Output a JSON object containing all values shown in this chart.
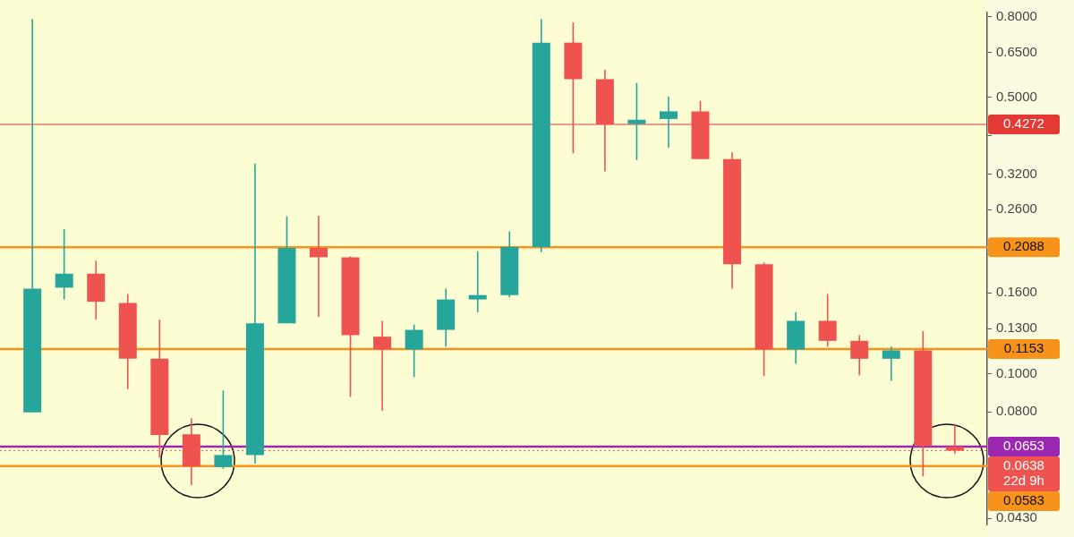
{
  "chart_data": {
    "type": "candlestick",
    "tick_labels": "y",
    "log": true,
    "categories": [
      null,
      null,
      null,
      null,
      null,
      null,
      null,
      null,
      null,
      null,
      null,
      null,
      null,
      null,
      null,
      null,
      null,
      null,
      null,
      null,
      null,
      null,
      null,
      null,
      null,
      null,
      null,
      null,
      null,
      null
    ],
    "ohlc": [
      [
        0.0798,
        0.79,
        0.0798,
        0.164
      ],
      [
        0.165,
        0.232,
        0.154,
        0.179
      ],
      [
        0.179,
        0.193,
        0.137,
        0.152
      ],
      [
        0.151,
        0.159,
        0.0913,
        0.109
      ],
      [
        0.109,
        0.137,
        0.0613,
        0.0699
      ],
      [
        0.0702,
        0.0771,
        0.0522,
        0.0582
      ],
      [
        0.058,
        0.0906,
        0.0574,
        0.0622
      ],
      [
        0.0622,
        0.34,
        0.0592,
        0.134
      ],
      [
        0.134,
        0.25,
        0.134,
        0.208
      ],
      [
        0.208,
        0.251,
        0.139,
        0.197
      ],
      [
        0.197,
        0.198,
        0.0873,
        0.125
      ],
      [
        0.124,
        0.136,
        0.0805,
        0.115
      ],
      [
        0.115,
        0.133,
        0.098,
        0.129
      ],
      [
        0.129,
        0.164,
        0.117,
        0.154
      ],
      [
        0.154,
        0.204,
        0.143,
        0.158
      ],
      [
        0.158,
        0.229,
        0.156,
        0.209
      ],
      [
        0.209,
        0.79,
        0.203,
        0.688
      ],
      [
        0.688,
        0.774,
        0.361,
        0.556
      ],
      [
        0.556,
        0.588,
        0.325,
        0.427
      ],
      [
        0.428,
        0.544,
        0.347,
        0.439
      ],
      [
        0.441,
        0.503,
        0.373,
        0.461
      ],
      [
        0.461,
        0.49,
        0.349,
        0.349
      ],
      [
        0.349,
        0.363,
        0.164,
        0.189
      ],
      [
        0.189,
        0.191,
        0.0985,
        0.115
      ],
      [
        0.115,
        0.143,
        0.106,
        0.136
      ],
      [
        0.136,
        0.159,
        0.117,
        0.121
      ],
      [
        0.121,
        0.125,
        0.099,
        0.109
      ],
      [
        0.109,
        0.117,
        0.0959,
        0.1145
      ],
      [
        0.1145,
        0.128,
        0.0549,
        0.0655
      ],
      [
        0.0653,
        0.0743,
        0.0627,
        0.0638
      ]
    ],
    "colors": [
      "#26a69a",
      "#26a69a",
      "#ef5350",
      "#ef5350",
      "#ef5350",
      "#ef5350",
      "#26a69a",
      "#26a69a",
      "#26a69a",
      "#ef5350",
      "#ef5350",
      "#ef5350",
      "#26a69a",
      "#26a69a",
      "#26a69a",
      "#26a69a",
      "#26a69a",
      "#ef5350",
      "#ef5350",
      "#26a69a",
      "#26a69a",
      "#ef5350",
      "#ef5350",
      "#ef5350",
      "#26a69a",
      "#ef5350",
      "#ef5350",
      "#26a69a",
      "#ef5350",
      "#ef5350"
    ],
    "ylim": [
      0.0415,
      0.82
    ],
    "yticks": [
      {
        "value": 0.043,
        "label": "0.0430"
      },
      {
        "value": 0.08,
        "label": "0.0800"
      },
      {
        "value": 0.1,
        "label": "0.1000"
      },
      {
        "value": 0.13,
        "label": "0.1300"
      },
      {
        "value": 0.16,
        "label": "0.1600"
      },
      {
        "value": 0.2,
        "label": null
      },
      {
        "value": 0.26,
        "label": "0.2600"
      },
      {
        "value": 0.32,
        "label": "0.3200"
      },
      {
        "value": 0.4,
        "label": null
      },
      {
        "value": 0.5,
        "label": "0.5000"
      },
      {
        "value": 0.65,
        "label": "0.6500"
      },
      {
        "value": 0.8,
        "label": "0.8000"
      }
    ],
    "ref_lines": [
      {
        "axis": "y",
        "value": 0.4272,
        "label": "0.4272",
        "color": "#e53935",
        "line_style": "solid"
      },
      {
        "axis": "y",
        "value": 0.2088,
        "label": "0.2088",
        "color": "#f7931a",
        "line_style": "solid"
      },
      {
        "axis": "y",
        "value": 0.1153,
        "label": "0.1153",
        "color": "#f7931a",
        "line_style": "solid"
      },
      {
        "axis": "y",
        "value": 0.0653,
        "label": "0.0653",
        "color": "#9c27b0",
        "line_style": "solid"
      },
      {
        "axis": "y",
        "value": 0.0638,
        "label": "0.0638\n22d 9h",
        "color": "#ef5350",
        "line_style": "dotted"
      },
      {
        "axis": "y",
        "value": 0.0583,
        "label": "0.0583",
        "color": "#f7931a",
        "line_style": "solid"
      }
    ]
  }
}
